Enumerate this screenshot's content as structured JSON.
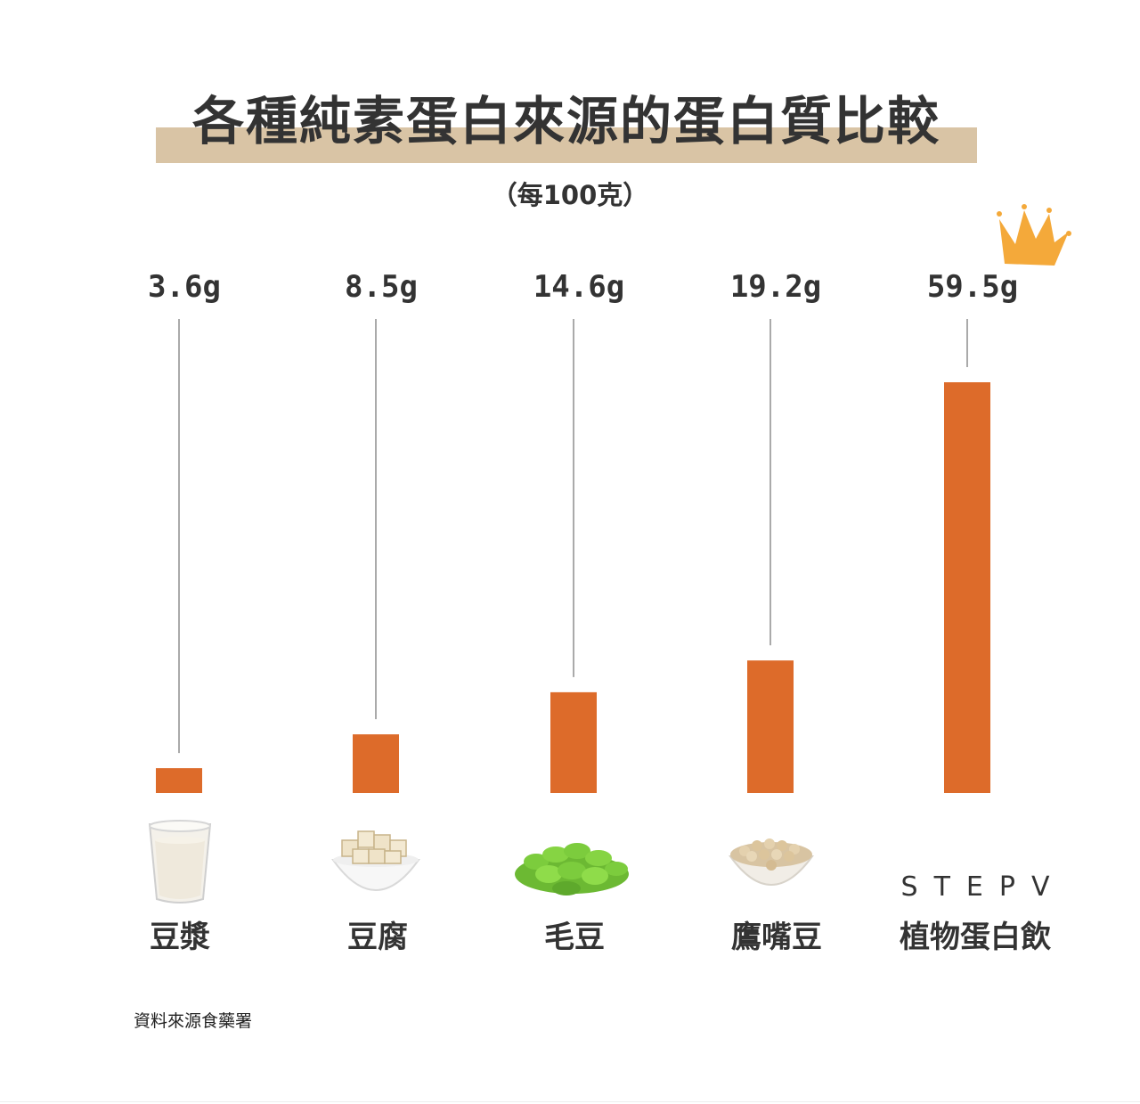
{
  "title": "各種純素蛋白來源的蛋白質比較",
  "subtitle": "（每100克）",
  "source_note": "資料來源食藥署",
  "brand": "STEPV",
  "colors": {
    "bar": "#dd6b2a",
    "title_band": "#d9c4a5",
    "text": "#333333",
    "crown": "#f4a93a",
    "leader_line": "#555555"
  },
  "icons": [
    "soy-milk-glass-icon",
    "tofu-bowl-icon",
    "edamame-icon",
    "chickpea-bowl-icon",
    "crown-icon"
  ],
  "chart_data": {
    "type": "bar",
    "unit": "g",
    "categories": [
      "豆漿",
      "豆腐",
      "毛豆",
      "鷹嘴豆",
      "植物蛋白飲"
    ],
    "values": [
      3.6,
      8.5,
      14.6,
      19.2,
      59.5
    ],
    "value_labels": [
      "3.6g",
      "8.5g",
      "14.6g",
      "19.2g",
      "59.5g"
    ],
    "ylim": [
      0,
      60
    ],
    "grid": false,
    "legend": "none",
    "highlight": "植物蛋白飲"
  }
}
